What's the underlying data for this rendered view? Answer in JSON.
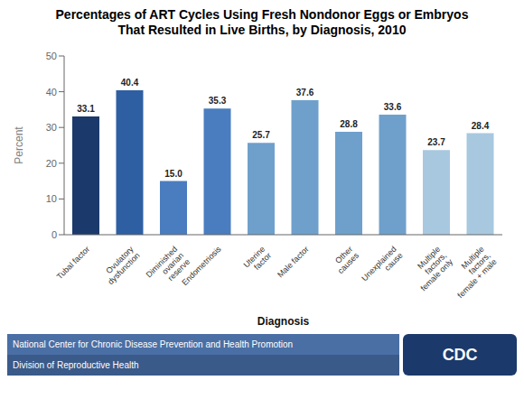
{
  "chart_data": {
    "type": "bar",
    "title": "Percentages of ART Cycles Using Fresh Nondonor Eggs or Embryos\nThat Resulted in Live Births, by Diagnosis, 2010",
    "categories": [
      "Tubal factor",
      "Ovulatory\ndysfunction",
      "Diminished\novarian\nreserve",
      "Endometriosis",
      "Uterine\nfactor",
      "Male factor",
      "Other\ncauses",
      "Unexplained\ncause",
      "Multiple\nfactors,\nfemale only",
      "Multiple\nfactors,\nfemale + male"
    ],
    "values": [
      33.1,
      40.4,
      15.0,
      35.3,
      25.7,
      37.6,
      28.8,
      33.6,
      23.7,
      28.4
    ],
    "value_labels": [
      "33.1",
      "40.4",
      "15.0",
      "35.3",
      "25.7",
      "37.6",
      "28.8",
      "33.6",
      "23.7",
      "28.4"
    ],
    "colors": [
      "#1b3a6b",
      "#2e5fa3",
      "#4a7dbf",
      "#4a7dbf",
      "#6fa0cc",
      "#6fa0cc",
      "#6fa0cc",
      "#6fa0cc",
      "#a8c8e0",
      "#a8c8e0"
    ],
    "xlabel": "Diagnosis",
    "ylabel": "Percent",
    "ylim": [
      0,
      50
    ],
    "yticks": [
      0,
      10,
      20,
      30,
      40,
      50
    ],
    "grid": false,
    "data_labels": true,
    "annotations": [
      "National Center for Chronic Disease Prevention and Health Promotion",
      "Division of Reproductive Health",
      "CDC"
    ]
  }
}
